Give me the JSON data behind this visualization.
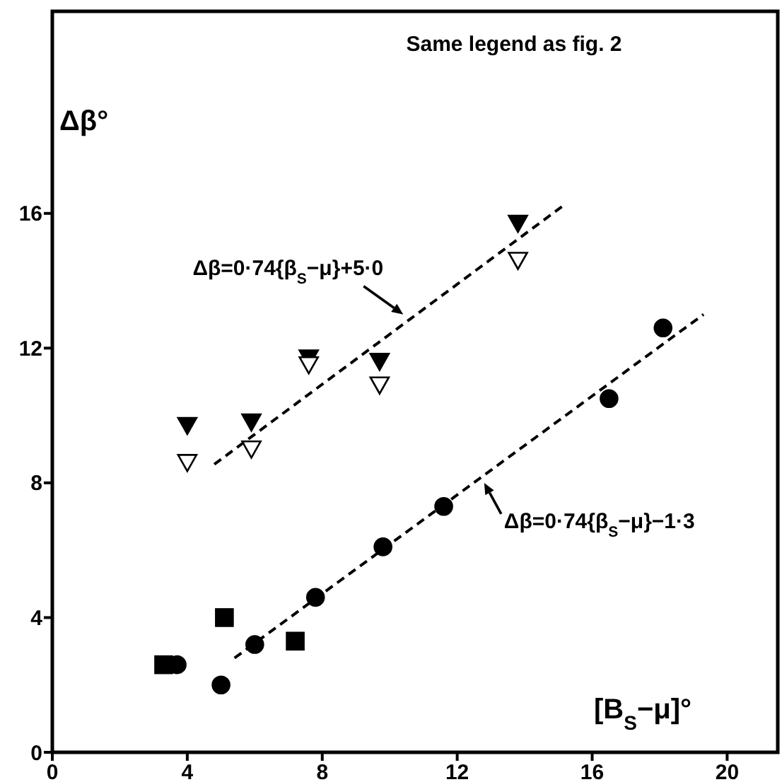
{
  "chart_data": {
    "type": "scatter",
    "xlabel": "[B$_{S}$−μ]°",
    "ylabel": "Δβ°",
    "xlim": [
      0,
      21.5
    ],
    "ylim": [
      0,
      22
    ],
    "xticks": [
      0,
      4,
      8,
      12,
      16,
      20
    ],
    "yticks": [
      0,
      4,
      8,
      12,
      16
    ],
    "grid": false,
    "annotations": [
      "Same legend as fig. 2",
      {
        "text": "Δβ=0·74{β$_{S}$−μ}+5·0",
        "x": 10.4,
        "y": 13.0
      },
      {
        "text": "Δβ=0·74{β$_{S}$−μ}−1·3",
        "x": 12.8,
        "y": 8.0
      }
    ],
    "series": [
      {
        "marker": "triangle",
        "color": "#000000",
        "x": [
          4.0,
          5.9,
          7.6,
          9.7,
          13.8
        ],
        "values": [
          9.7,
          9.8,
          11.7,
          11.6,
          15.7
        ]
      },
      {
        "marker": "triangle",
        "color": "#ffffff",
        "x": [
          4.0,
          5.9,
          7.6,
          9.7,
          13.8
        ],
        "values": [
          8.6,
          9.0,
          11.5,
          10.9,
          14.6
        ]
      },
      {
        "marker": "circle",
        "color": "#000000",
        "x": [
          3.7,
          5.0,
          6.0,
          7.8,
          9.8,
          11.6,
          16.5,
          18.1
        ],
        "values": [
          2.6,
          2.0,
          3.2,
          4.6,
          6.1,
          7.3,
          10.5,
          12.6
        ]
      },
      {
        "marker": "square",
        "color": "#000000",
        "x": [
          3.3,
          5.1,
          7.2
        ],
        "values": [
          2.6,
          4.0,
          3.3
        ]
      },
      {
        "type": "line",
        "marker": "none",
        "line_style": "dashed",
        "color": "#000000",
        "x": [
          4.8,
          15.1
        ],
        "values": [
          8.55,
          16.2
        ]
      },
      {
        "type": "line",
        "marker": "none",
        "line_style": "dashed",
        "color": "#000000",
        "x": [
          5.4,
          19.3
        ],
        "values": [
          2.8,
          13.0
        ]
      }
    ]
  }
}
